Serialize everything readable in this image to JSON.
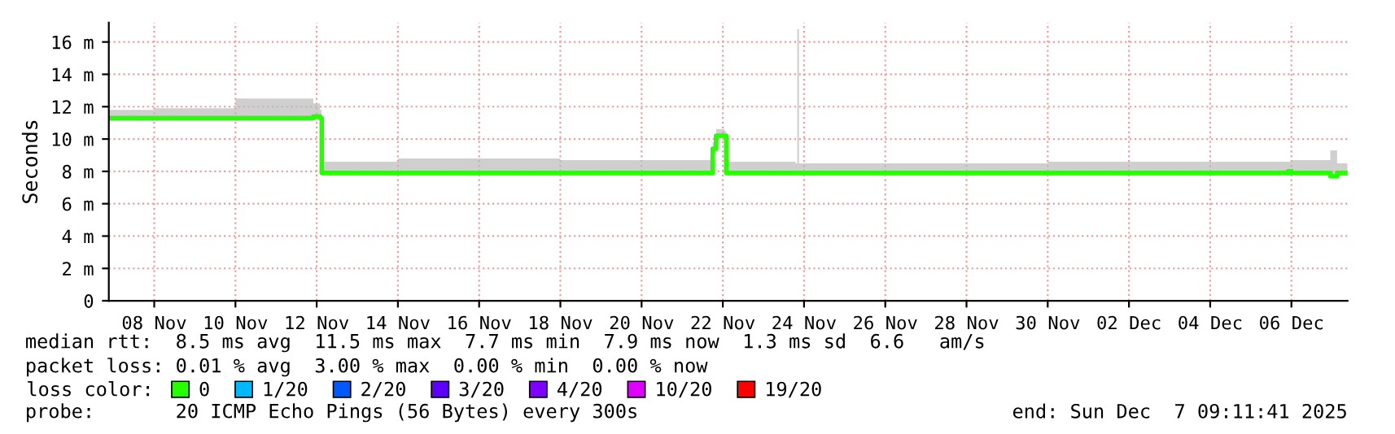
{
  "chart_data": {
    "type": "line",
    "ylabel": "Seconds",
    "x": [
      "2025-11-06T21:10",
      "2025-11-08T00:00",
      "2025-11-10T00:00",
      "2025-11-11T22:00",
      "2025-11-12T02:00",
      "2025-11-12T03:00",
      "2025-11-14T00:00",
      "2025-11-18T00:00",
      "2025-11-21T17:00",
      "2025-11-21T18:00",
      "2025-11-21T20:00",
      "2025-11-22T01:00",
      "2025-11-22T02:00",
      "2025-11-23T19:00",
      "2025-11-23T20:00",
      "2025-11-23T21:00",
      "2025-11-30T00:00",
      "2025-12-05T22:00",
      "2025-12-06T00:00",
      "2025-12-06T23:00",
      "2025-12-07T03:00",
      "2025-12-07T09:11"
    ],
    "series": [
      {
        "name": "0",
        "color": "#26ff00",
        "values": [
          11.3,
          11.3,
          11.3,
          11.4,
          11.3,
          7.9,
          7.9,
          7.9,
          7.9,
          9.4,
          10.2,
          10.2,
          7.9,
          7.9,
          7.9,
          7.9,
          7.9,
          8.0,
          7.9,
          7.7,
          7.9,
          7.9
        ],
        "lower": [
          11.1,
          11.1,
          11.1,
          11.2,
          11.1,
          7.8,
          7.8,
          7.8,
          7.8,
          9.3,
          10.1,
          10.1,
          7.8,
          7.8,
          7.8,
          7.8,
          7.8,
          7.9,
          7.8,
          7.6,
          7.8,
          7.8
        ],
        "upper": [
          11.8,
          11.9,
          12.5,
          12.2,
          11.8,
          8.6,
          8.8,
          8.7,
          8.6,
          9.8,
          10.6,
          10.5,
          8.6,
          8.5,
          16.8,
          8.5,
          8.6,
          8.6,
          8.7,
          9.3,
          8.5,
          8.4
        ]
      },
      {
        "name": "1/20",
        "color": "#00b8ff",
        "values": [
          null,
          null,
          null,
          null,
          null,
          null,
          null,
          null,
          null,
          null,
          null,
          null,
          null,
          null,
          null,
          null,
          null,
          null,
          null,
          null,
          null,
          null
        ]
      },
      {
        "name": "2/20",
        "color": "#0059ff",
        "values": [
          null,
          null,
          null,
          null,
          null,
          null,
          null,
          null,
          null,
          null,
          null,
          null,
          null,
          null,
          null,
          null,
          null,
          null,
          null,
          null,
          null,
          null
        ]
      },
      {
        "name": "3/20",
        "color": "#5e00ff",
        "values": [
          null,
          null,
          null,
          null,
          null,
          null,
          null,
          null,
          null,
          null,
          null,
          null,
          null,
          null,
          null,
          null,
          null,
          null,
          null,
          null,
          null,
          null
        ]
      },
      {
        "name": "4/20",
        "color": "#7e00ff",
        "values": [
          null,
          null,
          null,
          null,
          null,
          null,
          null,
          null,
          null,
          null,
          null,
          null,
          null,
          null,
          null,
          null,
          null,
          null,
          null,
          null,
          null,
          null
        ]
      },
      {
        "name": "10/20",
        "color": "#dd00ff",
        "values": [
          null,
          null,
          null,
          null,
          null,
          null,
          null,
          null,
          null,
          null,
          null,
          null,
          null,
          null,
          null,
          null,
          null,
          null,
          null,
          null,
          null,
          null
        ]
      },
      {
        "name": "19/20",
        "color": "#ff0000",
        "values": [
          null,
          null,
          null,
          null,
          null,
          null,
          null,
          null,
          null,
          null,
          null,
          null,
          null,
          null,
          null,
          null,
          null,
          null,
          null,
          null,
          null,
          null
        ]
      }
    ],
    "legend_title": "loss color:",
    "legend": "bottom",
    "xlim": [
      "2025-11-06T21:10",
      "2025-12-07T09:11"
    ],
    "xticks": [
      {
        "value": "2025-11-08",
        "label": "08 Nov"
      },
      {
        "value": "2025-11-10",
        "label": "10 Nov"
      },
      {
        "value": "2025-11-12",
        "label": "12 Nov"
      },
      {
        "value": "2025-11-14",
        "label": "14 Nov"
      },
      {
        "value": "2025-11-16",
        "label": "16 Nov"
      },
      {
        "value": "2025-11-18",
        "label": "18 Nov"
      },
      {
        "value": "2025-11-20",
        "label": "20 Nov"
      },
      {
        "value": "2025-11-22",
        "label": "22 Nov"
      },
      {
        "value": "2025-11-24",
        "label": "24 Nov"
      },
      {
        "value": "2025-11-26",
        "label": "26 Nov"
      },
      {
        "value": "2025-11-28",
        "label": "28 Nov"
      },
      {
        "value": "2025-11-30",
        "label": "30 Nov"
      },
      {
        "value": "2025-12-02",
        "label": "02 Dec"
      },
      {
        "value": "2025-12-04",
        "label": "04 Dec"
      },
      {
        "value": "2025-12-06",
        "label": "06 Dec"
      }
    ],
    "ylim": [
      0,
      17.2
    ],
    "yticks": [
      0,
      {
        "value": 2,
        "label": "2 m"
      },
      {
        "value": 4,
        "label": "4 m"
      },
      {
        "value": 6,
        "label": "6 m"
      },
      {
        "value": 8,
        "label": "8 m"
      },
      {
        "value": 10,
        "label": "10 m"
      },
      {
        "value": 12,
        "label": "12 m"
      },
      {
        "value": 14,
        "label": "14 m"
      },
      {
        "value": 16,
        "label": "16 m"
      }
    ],
    "grid": true,
    "marker": "none",
    "line_style": "solid",
    "annotations": [
      "median rtt:  8.5 ms avg  11.5 ms max  7.7 ms min  7.9 ms now  1.3 ms sd  6.6   am/s",
      "packet loss: 0.01 % avg  3.00 % max  0.00 % min  0.00 % now",
      "probe:       20 ICMP Echo Pings (56 Bytes) every 300s",
      "end: Sun Dec  7 09:11:41 2025"
    ]
  }
}
